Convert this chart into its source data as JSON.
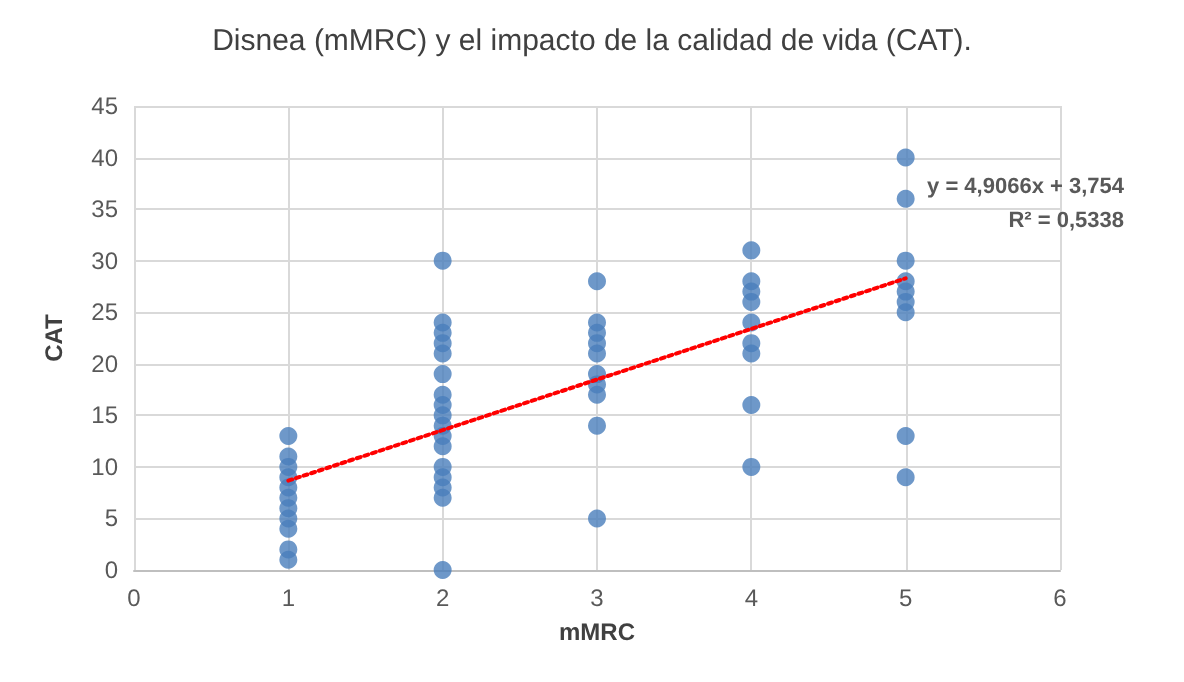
{
  "chart_data": {
    "type": "scatter",
    "title": "Disnea (mMRC) y el impacto de la calidad de vida (CAT).",
    "xlabel": "mMRC",
    "ylabel": "CAT",
    "series": [
      {
        "color": "#4a7ebb",
        "marker": "circle",
        "x": [
          1,
          1,
          1,
          1,
          1,
          1,
          1,
          1,
          1,
          1,
          1,
          2,
          2,
          2,
          2,
          2,
          2,
          2,
          2,
          2,
          2,
          2,
          2,
          2,
          2,
          2,
          2,
          2,
          3,
          3,
          3,
          3,
          3,
          3,
          3,
          3,
          3,
          3,
          4,
          4,
          4,
          4,
          4,
          4,
          4,
          4,
          4,
          5,
          5,
          5,
          5,
          5,
          5,
          5,
          5,
          5
        ],
        "values": [
          13,
          11,
          10,
          9,
          8,
          7,
          6,
          5,
          4,
          2,
          1,
          30,
          24,
          23,
          22,
          21,
          19,
          17,
          16,
          15,
          14,
          13,
          12,
          10,
          9,
          8,
          7,
          0,
          28,
          24,
          23,
          22,
          21,
          19,
          18,
          17,
          14,
          5,
          31,
          28,
          27,
          26,
          24,
          22,
          21,
          16,
          10,
          40,
          36,
          30,
          28,
          27,
          26,
          25,
          13,
          9
        ]
      },
      {
        "type": "line",
        "color": "#ff0000",
        "line_style": "dotted",
        "marker": "none",
        "x": [
          1,
          5
        ],
        "values": [
          8.66,
          28.29
        ]
      }
    ],
    "annotations": [
      "y = 4,9066x + 3,754",
      "R² = 0,5338"
    ],
    "xlim": [
      0,
      6
    ],
    "xticks": [
      0,
      1,
      2,
      3,
      4,
      5,
      6
    ],
    "ylim": [
      0,
      45
    ],
    "yticks": [
      0,
      5,
      10,
      15,
      20,
      25,
      30,
      35,
      40,
      45
    ],
    "grid": true
  }
}
